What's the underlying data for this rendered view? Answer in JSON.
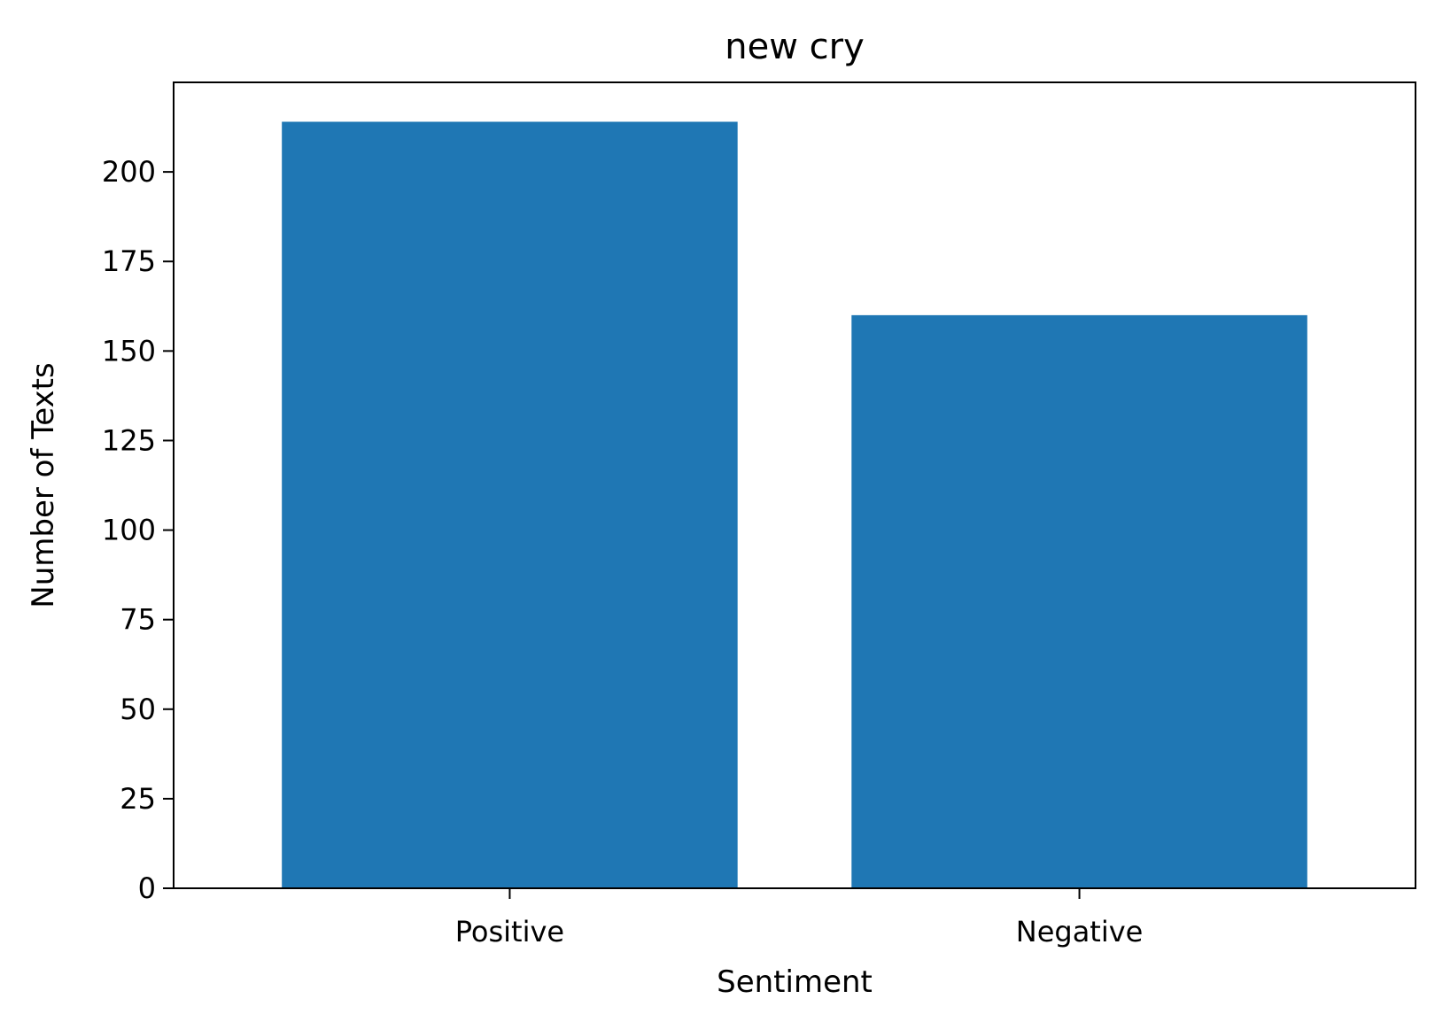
{
  "chart_data": {
    "type": "bar",
    "title": "new cry",
    "xlabel": "Sentiment",
    "ylabel": "Number of Texts",
    "categories": [
      "Positive",
      "Negative"
    ],
    "values": [
      214,
      160
    ],
    "ylim": [
      0,
      225
    ],
    "yticks": [
      0,
      25,
      50,
      75,
      100,
      125,
      150,
      175,
      200
    ],
    "ytick_labels": [
      "0",
      "25",
      "50",
      "75",
      "100",
      "125",
      "150",
      "175",
      "200"
    ],
    "bar_color": "#1f77b4",
    "grid": false,
    "legend": "none"
  }
}
